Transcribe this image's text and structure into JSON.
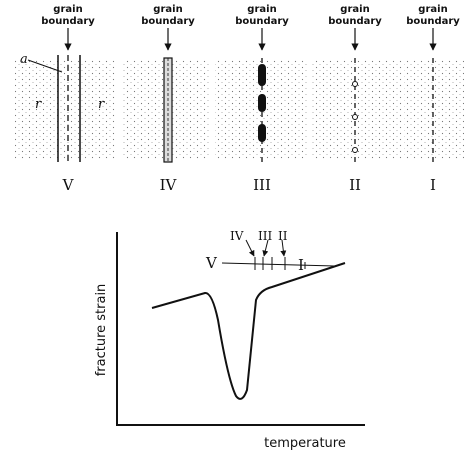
{
  "panels": [
    {
      "line1": "grain",
      "line2": "boundary",
      "label": "V"
    },
    {
      "line1": "grain",
      "line2": "boundary",
      "label": "IV"
    },
    {
      "line1": "grain",
      "line2": "boundary",
      "label": "III"
    },
    {
      "line1": "grain",
      "line2": "boundary",
      "label": "II"
    },
    {
      "line1": "grain",
      "line2": "boundary",
      "label": "I"
    }
  ],
  "panel_v_marks": {
    "a": "a",
    "r_left": "r",
    "r_right": "r"
  },
  "graph": {
    "y_label": "fracture strain",
    "x_label": "temperature",
    "inset": {
      "left": "V",
      "right": "I",
      "upper": [
        "IV",
        "III",
        "II"
      ]
    }
  }
}
